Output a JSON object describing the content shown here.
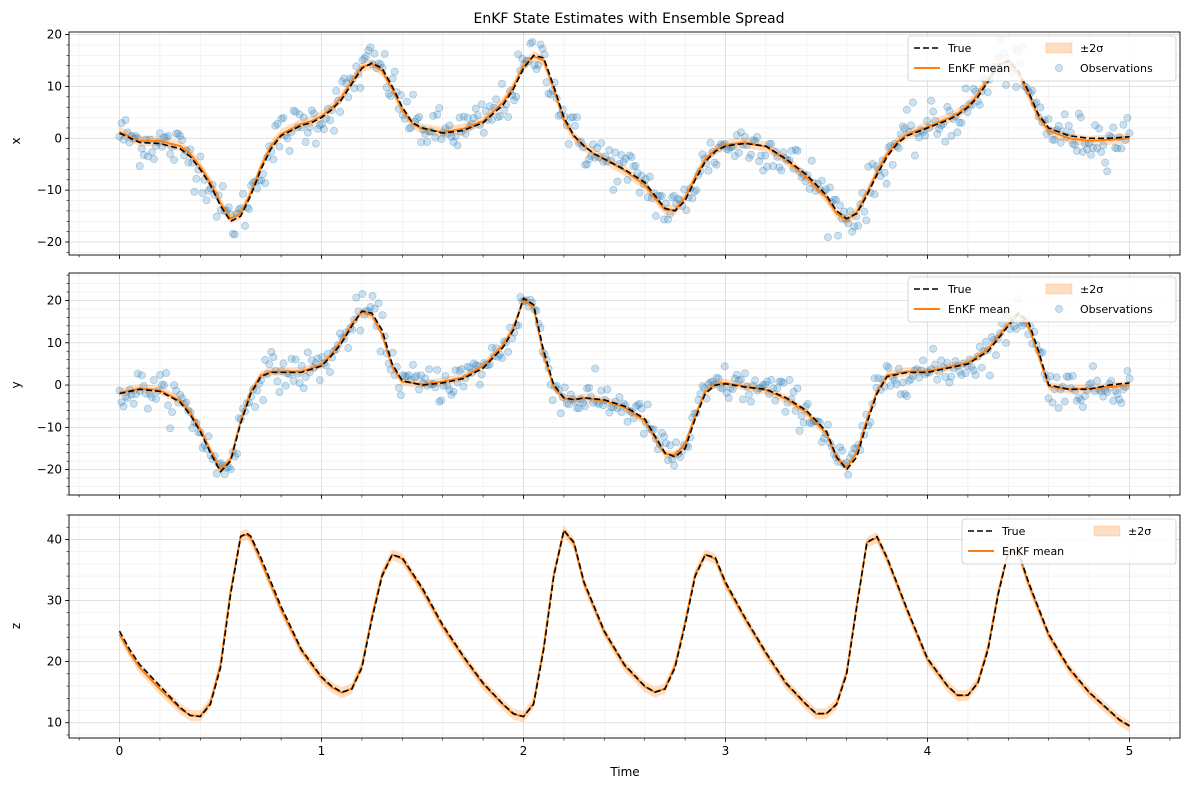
{
  "chart_data": [
    {
      "type": "line",
      "title": "EnKF State Estimates with Ensemble Spread",
      "xlabel": "",
      "ylabel": "x",
      "xlim": [
        -0.25,
        5.25
      ],
      "ylim": [
        -22.5,
        20.5
      ],
      "xticks": [
        0,
        1,
        2,
        3,
        4,
        5
      ],
      "xtick_labels": [
        "",
        "",
        "",
        "",
        "",
        ""
      ],
      "yticks": [
        -20,
        -10,
        0,
        10,
        20
      ],
      "ytick_labels": [
        "−20",
        "−10",
        "0",
        "10",
        "20"
      ],
      "grid": true,
      "legend_position": "top-right",
      "legend": [
        "True",
        "EnKF mean",
        "±2σ",
        "Observations"
      ],
      "band_halfwidth": 1.0,
      "obs_noise": 2.2,
      "series": [
        {
          "name": "True",
          "style": "dashed",
          "color": "#000000",
          "x": [
            0,
            0.1,
            0.2,
            0.3,
            0.35,
            0.4,
            0.45,
            0.5,
            0.55,
            0.6,
            0.65,
            0.7,
            0.75,
            0.8,
            0.85,
            0.9,
            0.95,
            1.0,
            1.05,
            1.1,
            1.15,
            1.2,
            1.25,
            1.3,
            1.35,
            1.4,
            1.45,
            1.5,
            1.6,
            1.7,
            1.8,
            1.9,
            1.95,
            2.0,
            2.05,
            2.1,
            2.15,
            2.2,
            2.25,
            2.3,
            2.35,
            2.4,
            2.5,
            2.6,
            2.65,
            2.7,
            2.75,
            2.8,
            2.85,
            2.9,
            2.95,
            3.0,
            3.05,
            3.1,
            3.2,
            3.3,
            3.4,
            3.5,
            3.55,
            3.6,
            3.65,
            3.7,
            3.75,
            3.8,
            3.85,
            3.9,
            4.0,
            4.1,
            4.15,
            4.2,
            4.25,
            4.3,
            4.35,
            4.4,
            4.45,
            4.5,
            4.55,
            4.6,
            4.7,
            4.8,
            4.9,
            5.0
          ],
          "y": [
            1,
            -0.8,
            -1,
            -2,
            -3.5,
            -6,
            -9,
            -13,
            -16,
            -15,
            -11,
            -6,
            -2,
            0.5,
            1.5,
            2.5,
            3,
            4,
            5.5,
            7.5,
            10.5,
            13.5,
            14.5,
            13.5,
            10,
            6,
            3,
            2,
            1,
            1.5,
            3,
            6.5,
            9.5,
            13.5,
            16,
            15.5,
            10,
            4,
            0.5,
            -1.5,
            -3,
            -4,
            -6,
            -8.5,
            -11,
            -13.5,
            -14,
            -12,
            -8,
            -4.5,
            -2.5,
            -1.5,
            -1.2,
            -1,
            -1.5,
            -4,
            -7,
            -11,
            -14,
            -15.5,
            -14.5,
            -11,
            -7,
            -3.5,
            -1,
            0.5,
            2,
            3.5,
            4.5,
            6,
            8,
            11,
            14,
            15,
            13,
            9,
            4.5,
            2,
            0.5,
            0,
            0,
            0.3
          ]
        },
        {
          "name": "EnKF mean",
          "style": "solid",
          "color": "#ff7f0e",
          "x": [
            0,
            0.1,
            0.2,
            0.3,
            0.35,
            0.4,
            0.45,
            0.5,
            0.55,
            0.6,
            0.65,
            0.7,
            0.75,
            0.8,
            0.85,
            0.9,
            0.95,
            1.0,
            1.05,
            1.1,
            1.15,
            1.2,
            1.25,
            1.3,
            1.35,
            1.4,
            1.45,
            1.5,
            1.6,
            1.7,
            1.8,
            1.9,
            1.95,
            2.0,
            2.05,
            2.1,
            2.15,
            2.2,
            2.25,
            2.3,
            2.35,
            2.4,
            2.5,
            2.6,
            2.65,
            2.7,
            2.75,
            2.8,
            2.85,
            2.9,
            2.95,
            3.0,
            3.05,
            3.1,
            3.2,
            3.3,
            3.4,
            3.5,
            3.55,
            3.6,
            3.65,
            3.7,
            3.75,
            3.8,
            3.85,
            3.9,
            4.0,
            4.1,
            4.15,
            4.2,
            4.25,
            4.3,
            4.35,
            4.4,
            4.45,
            4.5,
            4.55,
            4.6,
            4.7,
            4.8,
            4.9,
            5.0
          ],
          "y": [
            1.2,
            -0.5,
            -0.5,
            -1.5,
            -3,
            -5.5,
            -8.5,
            -12.5,
            -15.5,
            -14.5,
            -10.5,
            -5.5,
            -1.5,
            0.8,
            1.8,
            2.8,
            3.3,
            4.3,
            5.8,
            8,
            11,
            13.8,
            14.3,
            13,
            9.5,
            5.5,
            2.8,
            1.8,
            1.2,
            1.8,
            3.3,
            7,
            10,
            14,
            15.8,
            15,
            9.5,
            3.5,
            0.3,
            -1.5,
            -3,
            -4,
            -6.2,
            -9,
            -11.5,
            -13.8,
            -13.8,
            -11.5,
            -7.5,
            -4,
            -2.2,
            -1.3,
            -1,
            -0.9,
            -1.6,
            -4.2,
            -7.5,
            -11.5,
            -14.5,
            -15.8,
            -14.2,
            -10.5,
            -6.5,
            -3,
            -0.7,
            0.8,
            2.2,
            3.8,
            4.8,
            6.3,
            8.5,
            11.5,
            14.3,
            14.8,
            12.5,
            8.5,
            4,
            1.5,
            0,
            -0.5,
            -0.3,
            0
          ]
        }
      ],
      "observations": {
        "name": "Observations",
        "color": "#1f77b4",
        "count": 500
      }
    },
    {
      "type": "line",
      "title": "",
      "xlabel": "",
      "ylabel": "y",
      "xlim": [
        -0.25,
        5.25
      ],
      "ylim": [
        -26,
        26.5
      ],
      "xticks": [
        0,
        1,
        2,
        3,
        4,
        5
      ],
      "xtick_labels": [
        "",
        "",
        "",
        "",
        "",
        ""
      ],
      "yticks": [
        -20,
        -10,
        0,
        10,
        20
      ],
      "ytick_labels": [
        "−20",
        "−10",
        "0",
        "10",
        "20"
      ],
      "grid": true,
      "legend_position": "top-right",
      "legend": [
        "True",
        "EnKF mean",
        "±2σ",
        "Observations"
      ],
      "band_halfwidth": 1.0,
      "obs_noise": 2.2,
      "series": [
        {
          "name": "True",
          "style": "dashed",
          "color": "#000000",
          "x": [
            0,
            0.1,
            0.2,
            0.3,
            0.35,
            0.4,
            0.45,
            0.5,
            0.55,
            0.6,
            0.65,
            0.7,
            0.75,
            0.8,
            0.9,
            1.0,
            1.05,
            1.1,
            1.15,
            1.2,
            1.25,
            1.3,
            1.35,
            1.4,
            1.5,
            1.6,
            1.7,
            1.8,
            1.9,
            1.95,
            2.0,
            2.05,
            2.1,
            2.15,
            2.2,
            2.25,
            2.3,
            2.4,
            2.5,
            2.6,
            2.65,
            2.7,
            2.75,
            2.8,
            2.85,
            2.9,
            2.95,
            3.0,
            3.1,
            3.2,
            3.3,
            3.4,
            3.5,
            3.55,
            3.6,
            3.65,
            3.7,
            3.75,
            3.8,
            3.9,
            4.0,
            4.1,
            4.2,
            4.3,
            4.35,
            4.4,
            4.45,
            4.5,
            4.55,
            4.6,
            4.7,
            4.8,
            4.9,
            5.0
          ],
          "y": [
            -2,
            -1,
            -1.5,
            -4,
            -7,
            -11,
            -16,
            -20.5,
            -18,
            -9,
            -2,
            2,
            3,
            3,
            3,
            4.5,
            7,
            10,
            14,
            17.5,
            17,
            13,
            5,
            1,
            0,
            0.5,
            1.5,
            4,
            9,
            13,
            20.5,
            19,
            8,
            0,
            -3,
            -3.5,
            -3,
            -3.5,
            -5,
            -8,
            -12,
            -16,
            -17,
            -15,
            -8,
            -2,
            0,
            0.3,
            -0.5,
            -1,
            -3,
            -6,
            -11,
            -17,
            -20,
            -17,
            -9,
            -2,
            2,
            3,
            3,
            4,
            5,
            8,
            11,
            14,
            17,
            15,
            8,
            0,
            -1,
            -1,
            0,
            0.5
          ]
        },
        {
          "name": "EnKF mean",
          "style": "solid",
          "color": "#ff7f0e",
          "x": [
            0,
            0.1,
            0.2,
            0.3,
            0.35,
            0.4,
            0.45,
            0.5,
            0.55,
            0.6,
            0.65,
            0.7,
            0.75,
            0.8,
            0.9,
            1.0,
            1.05,
            1.1,
            1.15,
            1.2,
            1.25,
            1.3,
            1.35,
            1.4,
            1.5,
            1.6,
            1.7,
            1.8,
            1.9,
            1.95,
            2.0,
            2.05,
            2.1,
            2.15,
            2.2,
            2.25,
            2.3,
            2.4,
            2.5,
            2.6,
            2.65,
            2.7,
            2.75,
            2.8,
            2.85,
            2.9,
            2.95,
            3.0,
            3.1,
            3.2,
            3.3,
            3.4,
            3.5,
            3.55,
            3.6,
            3.65,
            3.7,
            3.75,
            3.8,
            3.9,
            4.0,
            4.1,
            4.2,
            4.3,
            4.35,
            4.4,
            4.45,
            4.5,
            4.55,
            4.6,
            4.7,
            4.8,
            4.9,
            5.0
          ],
          "y": [
            -1.8,
            -0.8,
            -1.2,
            -3.7,
            -6.5,
            -10.5,
            -15.5,
            -20,
            -17.5,
            -8.5,
            -1.5,
            2.3,
            3.2,
            3.2,
            3.2,
            4.8,
            7.3,
            10.5,
            14.5,
            17.3,
            16.5,
            12,
            4.3,
            0.8,
            0.2,
            0.8,
            1.8,
            4.5,
            9.5,
            13.5,
            20.3,
            18.3,
            7,
            -0.5,
            -3.2,
            -3.4,
            -3.1,
            -3.7,
            -5.3,
            -8.5,
            -12.5,
            -16.3,
            -16.5,
            -14,
            -7.3,
            -1.5,
            0.3,
            0.5,
            -0.3,
            -1.2,
            -3.3,
            -6.5,
            -11.5,
            -17.3,
            -19.5,
            -16,
            -8.2,
            -1.5,
            2.3,
            3.2,
            3.2,
            4.2,
            5.3,
            8.5,
            11.5,
            14.5,
            16.8,
            14,
            7,
            -0.3,
            -1,
            -0.8,
            -0.5,
            0
          ]
        }
      ],
      "observations": {
        "name": "Observations",
        "color": "#1f77b4",
        "count": 500
      }
    },
    {
      "type": "line",
      "title": "",
      "xlabel": "Time",
      "ylabel": "z",
      "xlim": [
        -0.25,
        5.25
      ],
      "ylim": [
        7.5,
        44
      ],
      "xticks": [
        0,
        1,
        2,
        3,
        4,
        5
      ],
      "xtick_labels": [
        "0",
        "1",
        "2",
        "3",
        "4",
        "5"
      ],
      "yticks": [
        10,
        20,
        30,
        40
      ],
      "ytick_labels": [
        "10",
        "20",
        "30",
        "40"
      ],
      "grid": true,
      "legend_position": "top-right",
      "legend": [
        "True",
        "EnKF mean",
        "±2σ"
      ],
      "band_halfwidth": 0.9,
      "series": [
        {
          "name": "True",
          "style": "dashed",
          "color": "#000000",
          "x": [
            0,
            0.05,
            0.1,
            0.2,
            0.3,
            0.35,
            0.4,
            0.45,
            0.5,
            0.55,
            0.6,
            0.63,
            0.65,
            0.7,
            0.8,
            0.9,
            1.0,
            1.05,
            1.1,
            1.15,
            1.2,
            1.25,
            1.3,
            1.35,
            1.4,
            1.5,
            1.6,
            1.7,
            1.8,
            1.9,
            1.95,
            2.0,
            2.05,
            2.1,
            2.15,
            2.2,
            2.25,
            2.3,
            2.4,
            2.5,
            2.6,
            2.65,
            2.7,
            2.75,
            2.8,
            2.85,
            2.9,
            2.95,
            3.0,
            3.1,
            3.2,
            3.3,
            3.4,
            3.45,
            3.5,
            3.55,
            3.6,
            3.65,
            3.7,
            3.75,
            3.8,
            3.9,
            4.0,
            4.1,
            4.15,
            4.2,
            4.25,
            4.3,
            4.35,
            4.4,
            4.45,
            4.5,
            4.6,
            4.7,
            4.8,
            4.9,
            4.95,
            5.0
          ],
          "y": [
            25,
            22,
            19.5,
            16,
            12.5,
            11.2,
            11,
            13,
            19,
            31,
            40.5,
            41,
            40.5,
            37,
            29,
            22,
            17.5,
            16,
            15,
            15.5,
            19,
            27,
            34,
            37.5,
            37,
            32,
            26,
            21,
            16.5,
            13,
            11.5,
            11,
            13,
            22,
            34,
            41.5,
            39.5,
            33,
            25,
            19.5,
            16,
            15,
            15.5,
            19,
            26,
            34,
            37.5,
            37,
            33,
            27,
            21.5,
            16.5,
            13,
            11.5,
            11.5,
            13,
            18,
            29,
            39.5,
            40.5,
            37,
            28.5,
            20.5,
            16,
            14.5,
            14.5,
            16.5,
            22,
            31,
            38,
            38,
            33,
            24.5,
            19,
            15,
            12,
            10.5,
            9.5
          ]
        },
        {
          "name": "EnKF mean",
          "style": "solid",
          "color": "#ff7f0e",
          "x": [
            0,
            0.05,
            0.1,
            0.2,
            0.3,
            0.35,
            0.4,
            0.45,
            0.5,
            0.55,
            0.6,
            0.63,
            0.65,
            0.7,
            0.8,
            0.9,
            1.0,
            1.05,
            1.1,
            1.15,
            1.2,
            1.25,
            1.3,
            1.35,
            1.4,
            1.5,
            1.6,
            1.7,
            1.8,
            1.9,
            1.95,
            2.0,
            2.05,
            2.1,
            2.15,
            2.2,
            2.25,
            2.3,
            2.4,
            2.5,
            2.6,
            2.65,
            2.7,
            2.75,
            2.8,
            2.85,
            2.9,
            2.95,
            3.0,
            3.1,
            3.2,
            3.3,
            3.4,
            3.45,
            3.5,
            3.55,
            3.6,
            3.65,
            3.7,
            3.75,
            3.8,
            3.9,
            4.0,
            4.1,
            4.15,
            4.2,
            4.25,
            4.3,
            4.35,
            4.4,
            4.45,
            4.5,
            4.6,
            4.7,
            4.8,
            4.9,
            4.95,
            5.0
          ],
          "y": [
            24.5,
            21.5,
            19,
            15.5,
            12.3,
            11.2,
            11.1,
            13.3,
            19.5,
            31.5,
            40.5,
            40.8,
            40.2,
            36.5,
            28.5,
            21.8,
            17.3,
            15.8,
            14.9,
            15.6,
            19.3,
            27.4,
            34.3,
            37.5,
            36.8,
            31.7,
            25.7,
            20.8,
            16.3,
            12.9,
            11.4,
            11,
            13.2,
            22.4,
            34.3,
            41.4,
            39.3,
            32.7,
            24.8,
            19.3,
            15.9,
            15,
            15.6,
            19.3,
            26.4,
            34.3,
            37.5,
            36.8,
            32.7,
            26.8,
            21.3,
            16.3,
            12.9,
            11.4,
            11.5,
            13.1,
            18.3,
            29.3,
            39.5,
            40.3,
            36.8,
            28.3,
            20.3,
            15.9,
            14.4,
            14.5,
            16.7,
            22.3,
            31.3,
            38,
            37.8,
            32.7,
            24.3,
            18.8,
            14.9,
            11.9,
            10.4,
            9.4
          ]
        }
      ]
    }
  ]
}
